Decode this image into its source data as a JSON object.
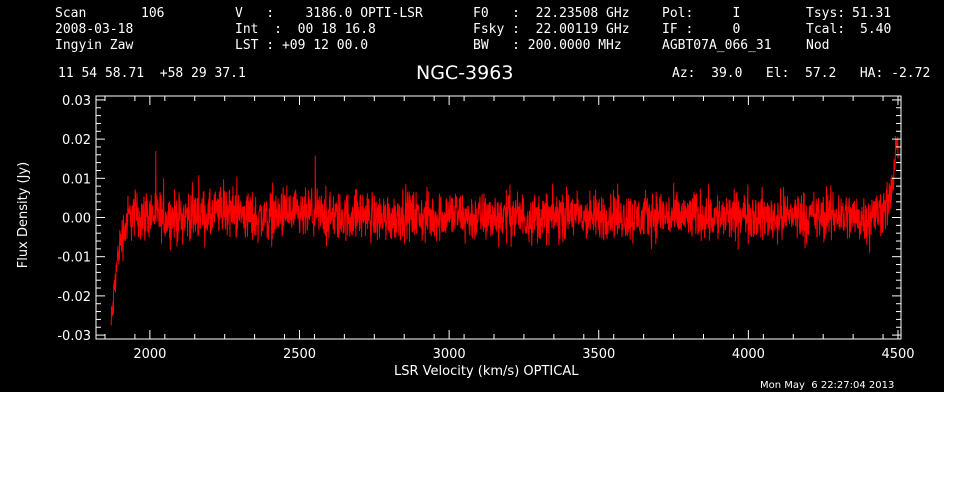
{
  "header": {
    "scan_label": "Scan",
    "scan_number": "106",
    "date": "2008-03-18",
    "observer": "Ingyin Zaw",
    "ra_dec": "11 54 58.71  +58 29 37.1",
    "velocity": "V   :    3186.0 OPTI-LSR",
    "integration": "Int  :  00 18 16.8",
    "lst": "LST : +09 12 00.0",
    "f0": "F0   :  22.23508 GHz",
    "fsky": "Fsky :  22.00119 GHz",
    "bw": "BW   : 200.0000 MHz",
    "pol": "Pol:     I",
    "if": "IF :     0",
    "project": "AGBT07A_066_31",
    "tsys_label": "Tsys:",
    "tsys_value": "51.31",
    "tcal_label": "Tcal:",
    "tcal_value": "5.40",
    "nod": "Nod",
    "source": "NGC-3963",
    "az_el_ha": "Az:  39.0   El:  57.2   HA: -2.72",
    "timestamp": "Mon May  6 22:27:04 2013"
  },
  "colors": {
    "background": "#000000",
    "axes": "#ffffff",
    "trace": "#ff0000"
  },
  "chart_data": {
    "type": "line",
    "xlabel": "LSR Velocity (km/s) OPTICAL",
    "ylabel": "Flux Density (Jy)",
    "xlim": [
      1820,
      4510
    ],
    "ylim": [
      -0.031,
      0.031
    ],
    "xticks": [
      2000,
      2500,
      3000,
      3500,
      4000,
      4500
    ],
    "xtick_labels": [
      "2000",
      "2500",
      "3000",
      "3500",
      "4000",
      "4500"
    ],
    "yticks": [
      -0.03,
      -0.02,
      -0.01,
      0.0,
      0.01,
      0.02,
      0.03
    ],
    "ytick_labels": [
      "-0.03",
      "-0.02",
      "-0.01",
      "0.00",
      "0.01",
      "0.02",
      "0.03"
    ],
    "grid": false,
    "series": [
      {
        "color": "#ff0000",
        "x": [
          1870,
          1875,
          1880,
          1885,
          1890,
          1895,
          1900,
          1910,
          1920,
          1930,
          1950,
          1970,
          2000,
          2050,
          2100,
          2150,
          2200,
          2250,
          2300,
          2350,
          2400,
          2450,
          2500,
          2550,
          2600,
          2650,
          2700,
          2750,
          2800,
          2850,
          2900,
          2950,
          3000,
          3050,
          3100,
          3150,
          3200,
          3250,
          3300,
          3350,
          3400,
          3450,
          3500,
          3550,
          3600,
          3650,
          3700,
          3750,
          3800,
          3850,
          3900,
          3950,
          4000,
          4050,
          4100,
          4150,
          4200,
          4250,
          4300,
          4350,
          4400,
          4450,
          4470,
          4480,
          4490,
          4495,
          4500
        ],
        "y": [
          -0.028,
          -0.024,
          -0.02,
          -0.015,
          -0.012,
          -0.009,
          -0.007,
          -0.004,
          -0.002,
          0.0,
          0.001,
          0.0,
          0.001,
          0.0,
          0.0,
          0.001,
          0.0,
          0.002,
          0.001,
          0.0,
          0.0,
          0.001,
          0.0,
          0.001,
          0.0,
          0.0,
          0.001,
          0.0,
          0.0,
          0.001,
          0.0,
          0.0,
          0.001,
          0.0,
          0.0,
          0.0,
          0.001,
          0.0,
          0.0,
          0.0,
          0.001,
          0.0,
          0.0,
          0.001,
          0.0,
          0.0,
          0.001,
          0.0,
          0.0,
          0.001,
          0.0,
          0.0,
          0.001,
          0.0,
          0.0,
          0.001,
          0.0,
          0.0,
          0.001,
          0.0,
          0.0,
          0.002,
          0.004,
          0.008,
          0.013,
          0.017,
          0.02
        ]
      }
    ]
  }
}
